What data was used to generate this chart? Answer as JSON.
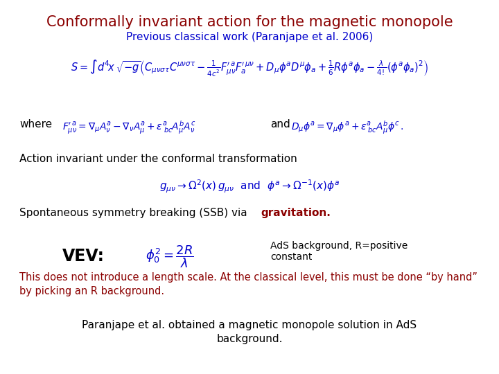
{
  "title": "Conformally invariant action for the magnetic monopole",
  "subtitle": "Previous classical work (Paranjape et al. 2006)",
  "title_color": "#8b0000",
  "subtitle_color": "#0000cc",
  "bg_color": "#ffffff",
  "math_color": "#0000cc",
  "black": "#000000",
  "red_color": "#8b0000",
  "red_text_line1": "This does not introduce a length scale. At the classical level, this must be done “by hand”",
  "red_text_line2": "by picking an R background.",
  "bottom_text_line1": "Paranjape et al. obtained a magnetic monopole solution in AdS",
  "bottom_text_line2": "background."
}
